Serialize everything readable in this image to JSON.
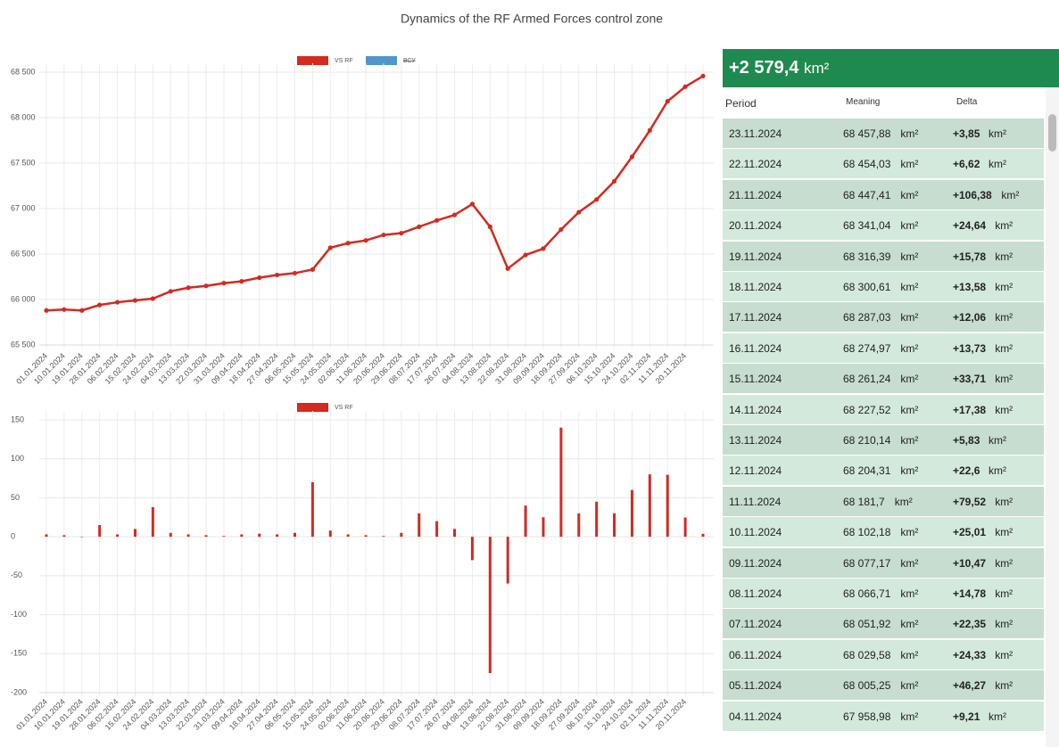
{
  "title": "Dynamics of the RF Armed Forces control zone",
  "chart_data": [
    {
      "type": "line",
      "legend": [
        {
          "name": "VS RF",
          "color": "#d42a20"
        },
        {
          "name": "ВСУ",
          "color": "#4f97c9",
          "hidden": true
        }
      ],
      "categories": [
        "01.01.2024",
        "10.01.2024",
        "19.01.2024",
        "28.01.2024",
        "06.02.2024",
        "15.02.2024",
        "24.02.2024",
        "04.03.2024",
        "13.03.2024",
        "22.03.2024",
        "31.03.2024",
        "09.04.2024",
        "18.04.2024",
        "27.04.2024",
        "06.05.2024",
        "15.05.2024",
        "24.05.2024",
        "02.06.2024",
        "11.06.2024",
        "20.06.2024",
        "29.06.2024",
        "08.07.2024",
        "17.07.2024",
        "26.07.2024",
        "04.08.2024",
        "13.08.2024",
        "22.08.2024",
        "31.08.2024",
        "09.09.2024",
        "18.09.2024",
        "27.09.2024",
        "06.10.2024",
        "15.10.2024",
        "24.10.2024",
        "02.11.2024",
        "11.11.2024",
        "20.11.2024",
        null
      ],
      "series": [
        {
          "name": "VS RF",
          "color": "#d42a20",
          "values": [
            65880,
            65890,
            65880,
            65940,
            65970,
            65990,
            66010,
            66090,
            66130,
            66150,
            66180,
            66200,
            66240,
            66270,
            66290,
            66330,
            66570,
            66620,
            66650,
            66710,
            66730,
            66800,
            66870,
            66930,
            67050,
            66800,
            66340,
            66490,
            66560,
            66770,
            66960,
            67100,
            67300,
            67570,
            67860,
            68180,
            68340,
            68457.88
          ]
        }
      ],
      "ylim": [
        65500,
        68500
      ],
      "yticks": [
        {
          "value": 65500,
          "label": "65 500"
        },
        {
          "value": 66000,
          "label": "66 000"
        },
        {
          "value": 66500,
          "label": "66 500"
        },
        {
          "value": 67000,
          "label": "67 000"
        },
        {
          "value": 67500,
          "label": "67 500"
        },
        {
          "value": 68000,
          "label": "68 000"
        },
        {
          "value": 68500,
          "label": "68 500"
        }
      ],
      "grid": true
    },
    {
      "type": "bar",
      "legend": [
        {
          "name": "VS RF",
          "color": "#d42a20"
        }
      ],
      "categories": [
        "01.01.2024",
        "10.01.2024",
        "19.01.2024",
        "28.01.2024",
        "06.02.2024",
        "15.02.2024",
        "24.02.2024",
        "04.03.2024",
        "13.03.2024",
        "22.03.2024",
        "31.03.2024",
        "09.04.2024",
        "18.04.2024",
        "27.04.2024",
        "06.05.2024",
        "15.05.2024",
        "24.05.2024",
        "02.06.2024",
        "11.06.2024",
        "20.06.2024",
        "29.06.2024",
        "08.07.2024",
        "17.07.2024",
        "26.07.2024",
        "04.08.2024",
        "13.08.2024",
        "22.08.2024",
        "31.08.2024",
        "09.09.2024",
        "18.09.2024",
        "27.09.2024",
        "06.10.2024",
        "15.10.2024",
        "24.10.2024",
        "02.11.2024",
        "11.11.2024",
        "20.11.2024",
        null
      ],
      "series": [
        {
          "name": "VS RF",
          "color": "#d42a20",
          "values": [
            3,
            2,
            0,
            15,
            3,
            10,
            38,
            5,
            3,
            2,
            1,
            3,
            4,
            3,
            5,
            70,
            8,
            3,
            2,
            1,
            5,
            30,
            20,
            10,
            -30,
            -175,
            -60,
            40,
            25,
            140,
            30,
            45,
            30,
            60,
            80,
            79.52,
            24.64,
            3.85
          ]
        }
      ],
      "ylim": [
        -200,
        150
      ],
      "yticks": [
        -200,
        -150,
        -100,
        -50,
        0,
        50,
        100,
        150
      ],
      "grid": true
    }
  ],
  "table": {
    "total": "+2 579,4",
    "unit": "km²",
    "columns": [
      "Period",
      "Meaning",
      "Delta"
    ],
    "rows": [
      [
        "23.11.2024",
        "68 457,88",
        "+3,85"
      ],
      [
        "22.11.2024",
        "68 454,03",
        "+6,62"
      ],
      [
        "21.11.2024",
        "68 447,41",
        "+106,38"
      ],
      [
        "20.11.2024",
        "68 341,04",
        "+24,64"
      ],
      [
        "19.11.2024",
        "68 316,39",
        "+15,78"
      ],
      [
        "18.11.2024",
        "68 300,61",
        "+13,58"
      ],
      [
        "17.11.2024",
        "68 287,03",
        "+12,06"
      ],
      [
        "16.11.2024",
        "68 274,97",
        "+13,73"
      ],
      [
        "15.11.2024",
        "68 261,24",
        "+33,71"
      ],
      [
        "14.11.2024",
        "68 227,52",
        "+17,38"
      ],
      [
        "13.11.2024",
        "68 210,14",
        "+5,83"
      ],
      [
        "12.11.2024",
        "68 204,31",
        "+22,6"
      ],
      [
        "11.11.2024",
        "68 181,7",
        "+79,52"
      ],
      [
        "10.11.2024",
        "68 102,18",
        "+25,01"
      ],
      [
        "09.11.2024",
        "68 077,17",
        "+10,47"
      ],
      [
        "08.11.2024",
        "68 066,71",
        "+14,78"
      ],
      [
        "07.11.2024",
        "68 051,92",
        "+22,35"
      ],
      [
        "06.11.2024",
        "68 029,58",
        "+24,33"
      ],
      [
        "05.11.2024",
        "68 005,25",
        "+46,27"
      ],
      [
        "04.11.2024",
        "67 958,98",
        "+9,21"
      ]
    ]
  }
}
